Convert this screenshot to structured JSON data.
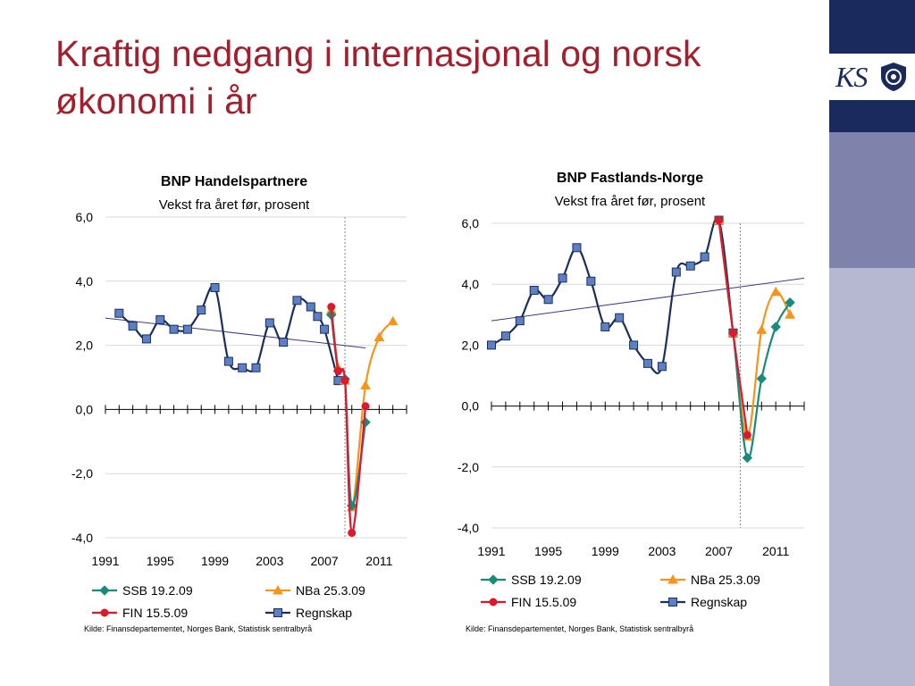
{
  "slide": {
    "title": "Kraftig nedgang i internasjonal og norsk økonomi i år"
  },
  "logo": {
    "text": "KS",
    "seal_icon": "crest-seal-icon"
  },
  "colors": {
    "title": "#a31f2e",
    "sidebar_dark": "#1b2a5c",
    "sidebar_mid": "#7f82ab",
    "sidebar_light": "#b6b8d2",
    "ssb": "#1a8a7a",
    "nba": "#f7941d",
    "fin": "#e0182d",
    "regnskap_line": "#1b2f5c",
    "regnskap_marker": "#5d7fc4",
    "trend": "#3a3a8c"
  },
  "chart_data": [
    {
      "type": "line",
      "title": "BNP Handelspartnere",
      "subtitle": "Vekst fra året før, prosent",
      "xlabel": "",
      "ylabel": "",
      "xlim": [
        1991,
        2013
      ],
      "ylim": [
        -4,
        6
      ],
      "yticks": [
        "6,0",
        "4,0",
        "2,0",
        "0,0",
        "-2,0",
        "-4,0"
      ],
      "xticks": [
        "1991",
        "1995",
        "1999",
        "2003",
        "2007",
        "2011"
      ],
      "grid": "horizontal",
      "legend": "bottom",
      "source": "Kilde: Finansdepartementet, Norges Bank, Statistisk sentralbyrå",
      "forecast_line_x": 2008.5,
      "trend": {
        "from": [
          1991,
          2.85
        ],
        "to": [
          2010,
          1.92
        ]
      },
      "series": [
        {
          "name": "SSB 19.2.09",
          "marker": "diamond",
          "points": [
            [
              2007.5,
              2.95
            ],
            [
              2008,
              1.2
            ],
            [
              2008.5,
              0.95
            ],
            [
              2009,
              -3.0
            ],
            [
              2010,
              -0.4
            ]
          ]
        },
        {
          "name": "NBa 25.3.09",
          "marker": "triangle",
          "points": [
            [
              2007.5,
              3.1
            ],
            [
              2008,
              1.3
            ],
            [
              2008.5,
              0.9
            ],
            [
              2009,
              -3.05
            ],
            [
              2010,
              0.75
            ],
            [
              2011,
              2.25
            ],
            [
              2012,
              2.75
            ]
          ]
        },
        {
          "name": "FIN 15.5.09",
          "marker": "circle",
          "points": [
            [
              2007.5,
              3.2
            ],
            [
              2008,
              1.2
            ],
            [
              2008.5,
              0.9
            ],
            [
              2009,
              -3.85
            ],
            [
              2010,
              0.1
            ]
          ]
        },
        {
          "name": "Regnskap",
          "marker": "square",
          "points": [
            [
              1992,
              3.0
            ],
            [
              1993,
              2.6
            ],
            [
              1994,
              2.2
            ],
            [
              1995,
              2.8
            ],
            [
              1996,
              2.5
            ],
            [
              1997,
              2.5
            ],
            [
              1998,
              3.1
            ],
            [
              1999,
              3.8
            ],
            [
              2000,
              1.5
            ],
            [
              2001,
              1.3
            ],
            [
              2002,
              1.3
            ],
            [
              2003,
              2.7
            ],
            [
              2004,
              2.1
            ],
            [
              2005,
              3.4
            ],
            [
              2006,
              3.2
            ],
            [
              2006.5,
              2.9
            ],
            [
              2007,
              2.5
            ],
            [
              2008,
              0.9
            ]
          ]
        }
      ]
    },
    {
      "type": "line",
      "title": "BNP Fastlands-Norge",
      "subtitle": "Vekst fra året før, prosent",
      "xlabel": "",
      "ylabel": "",
      "xlim": [
        1991,
        2013
      ],
      "ylim": [
        -4,
        6
      ],
      "yticks": [
        "6,0",
        "4,0",
        "2,0",
        "0,0",
        "-2,0",
        "-4,0"
      ],
      "xticks": [
        "1991",
        "1995",
        "1999",
        "2003",
        "2007",
        "2011"
      ],
      "grid": "horizontal",
      "legend": "bottom",
      "source": "Kilde: Finansdepartementet, Norges Bank, Statistisk sentralbyrå",
      "forecast_line_x": 2008.5,
      "trend": {
        "from": [
          1991,
          2.8
        ],
        "to": [
          2013,
          4.2
        ]
      },
      "series": [
        {
          "name": "SSB 19.2.09",
          "marker": "diamond",
          "points": [
            [
              2007,
              6.1
            ],
            [
              2008,
              2.4
            ],
            [
              2009,
              -1.7
            ],
            [
              2010,
              0.9
            ],
            [
              2011,
              2.6
            ],
            [
              2012,
              3.4
            ]
          ]
        },
        {
          "name": "NBa 25.3.09",
          "marker": "triangle",
          "points": [
            [
              2007,
              6.1
            ],
            [
              2008,
              2.4
            ],
            [
              2009,
              -1.0
            ],
            [
              2010,
              2.5
            ],
            [
              2011,
              3.75
            ],
            [
              2012,
              3.0
            ]
          ]
        },
        {
          "name": "FIN 15.5.09",
          "marker": "circle",
          "points": [
            [
              2007,
              6.1
            ],
            [
              2008,
              2.4
            ],
            [
              2009,
              -0.95
            ]
          ]
        },
        {
          "name": "Regnskap",
          "marker": "square",
          "points": [
            [
              1991,
              2.0
            ],
            [
              1992,
              2.3
            ],
            [
              1993,
              2.8
            ],
            [
              1994,
              3.8
            ],
            [
              1995,
              3.5
            ],
            [
              1996,
              4.2
            ],
            [
              1997,
              5.2
            ],
            [
              1998,
              4.1
            ],
            [
              1999,
              2.6
            ],
            [
              2000,
              2.9
            ],
            [
              2001,
              2.0
            ],
            [
              2002,
              1.4
            ],
            [
              2003,
              1.3
            ],
            [
              2004,
              4.4
            ],
            [
              2005,
              4.6
            ],
            [
              2006,
              4.9
            ],
            [
              2007,
              6.1
            ],
            [
              2008,
              2.4
            ]
          ]
        }
      ]
    }
  ]
}
